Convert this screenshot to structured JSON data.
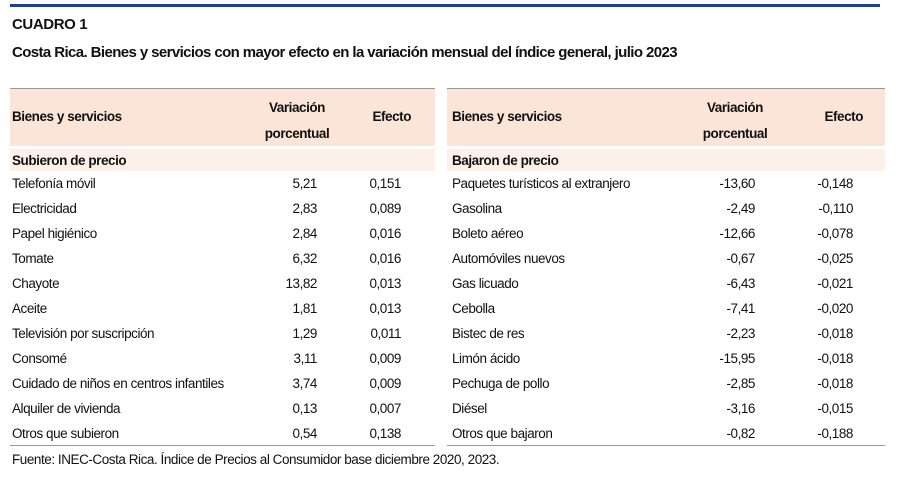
{
  "header": {
    "label": "CUADRO 1",
    "title": "Costa Rica. Bienes y servicios con mayor efecto en la variación mensual del índice general, julio 2023"
  },
  "tables": [
    {
      "columns": [
        "Bienes y servicios",
        "Variación porcentual",
        "Efecto"
      ],
      "section": "Subieron de precio",
      "rows": [
        [
          "Telefonía móvil",
          "5,21",
          "0,151"
        ],
        [
          "Electricidad",
          "2,83",
          "0,089"
        ],
        [
          "Papel higiénico",
          "2,84",
          "0,016"
        ],
        [
          "Tomate",
          "6,32",
          "0,016"
        ],
        [
          "Chayote",
          "13,82",
          "0,013"
        ],
        [
          "Aceite",
          "1,81",
          "0,013"
        ],
        [
          "Televisión por suscripción",
          "1,29",
          "0,011"
        ],
        [
          "Consomé",
          "3,11",
          "0,009"
        ],
        [
          "Cuidado de niños en centros infantiles",
          "3,74",
          "0,009"
        ],
        [
          "Alquiler de vivienda",
          "0,13",
          "0,007"
        ],
        [
          "Otros que subieron",
          "0,54",
          "0,138"
        ]
      ]
    },
    {
      "columns": [
        "Bienes y servicios",
        "Variación porcentual",
        "Efecto"
      ],
      "section": "Bajaron de precio",
      "rows": [
        [
          "Paquetes turísticos al extranjero",
          "-13,60",
          "-0,148"
        ],
        [
          "Gasolina",
          "-2,49",
          "-0,110"
        ],
        [
          "Boleto aéreo",
          "-12,66",
          "-0,078"
        ],
        [
          "Automóviles nuevos",
          "-0,67",
          "-0,025"
        ],
        [
          "Gas licuado",
          "-6,43",
          "-0,021"
        ],
        [
          "Cebolla",
          "-7,41",
          "-0,020"
        ],
        [
          "Bistec de res",
          "-2,23",
          "-0,018"
        ],
        [
          "Limón ácido",
          "-15,95",
          "-0,018"
        ],
        [
          "Pechuga de pollo",
          "-2,85",
          "-0,018"
        ],
        [
          "Diésel",
          "-3,16",
          "-0,015"
        ],
        [
          "Otros que bajaron",
          "-0,82",
          "-0,188"
        ]
      ]
    }
  ],
  "source": "Fuente: INEC-Costa Rica. Índice de Precios al Consumidor base diciembre 2020, 2023."
}
